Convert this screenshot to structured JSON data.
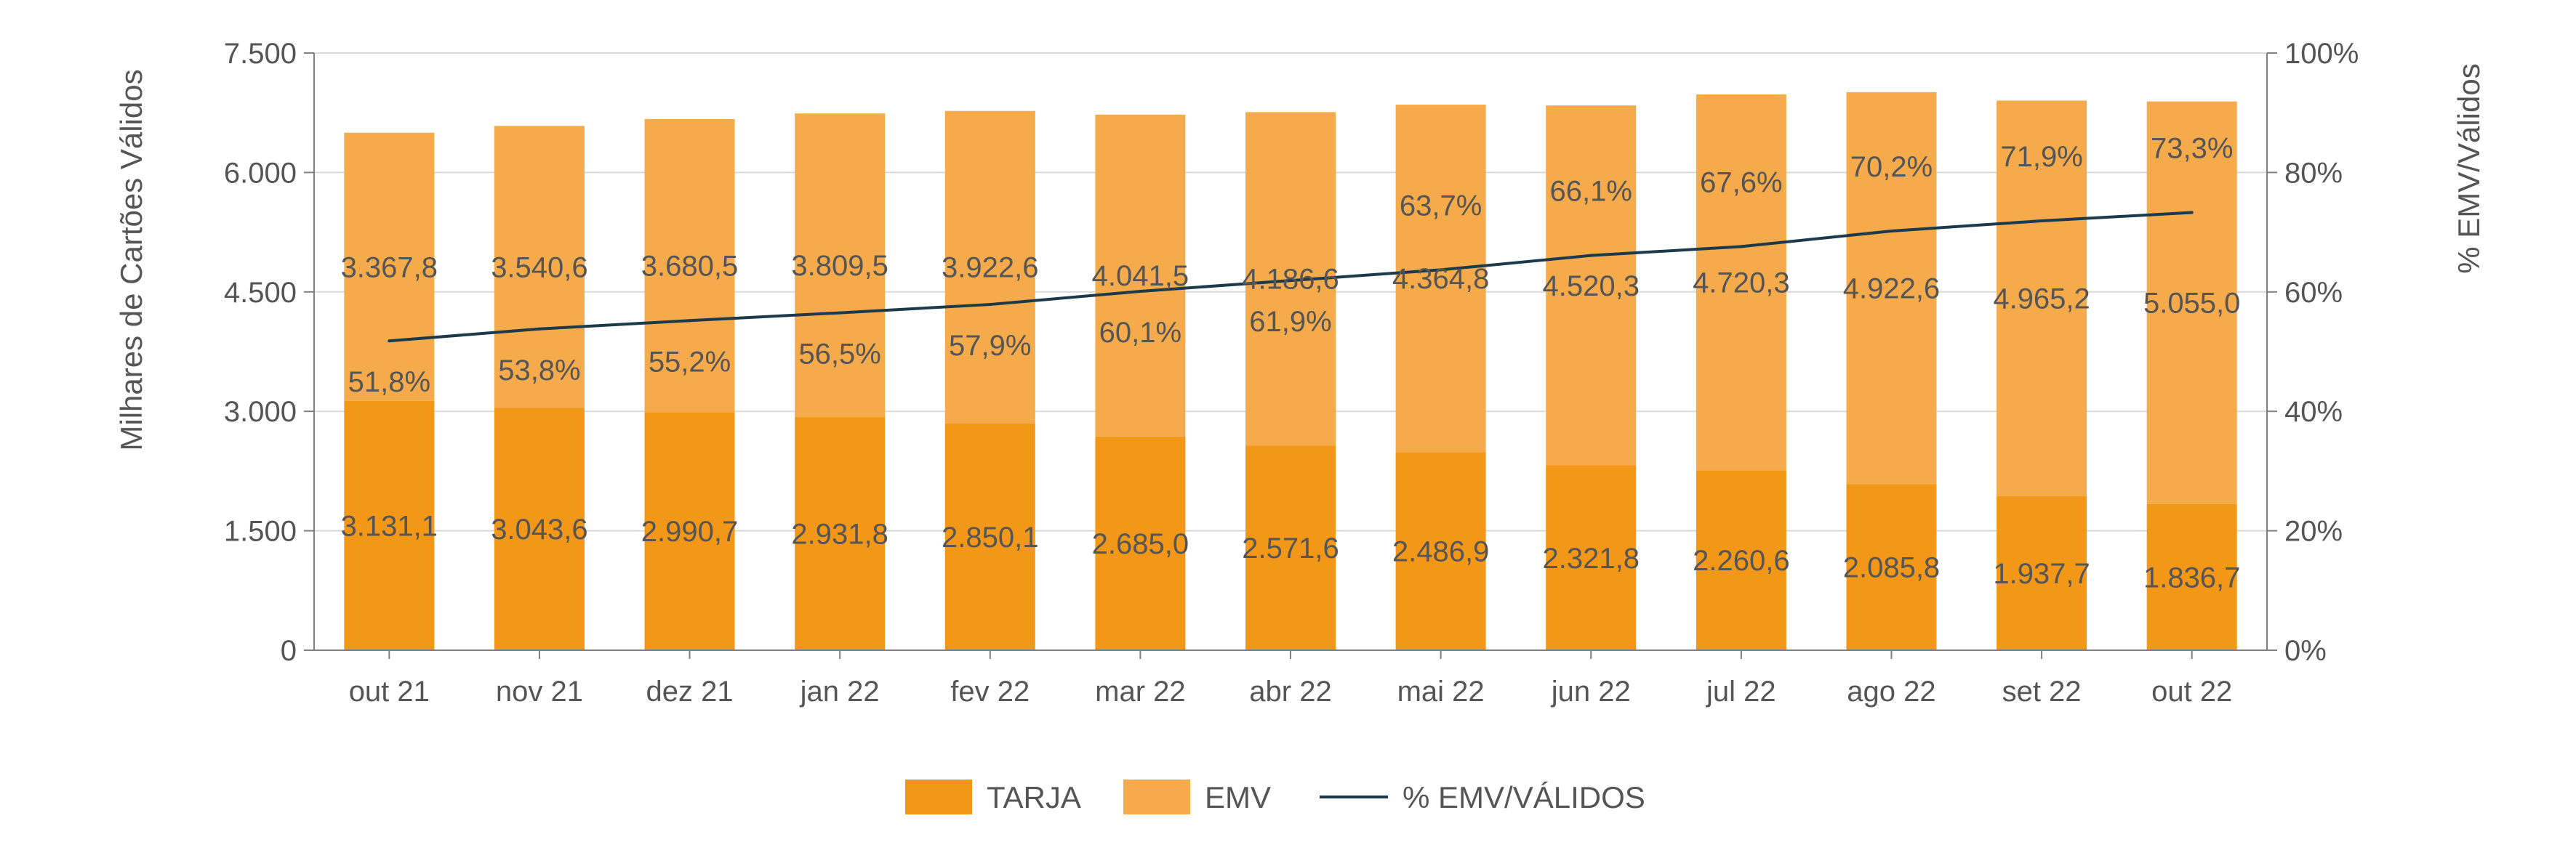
{
  "chart_data": {
    "type": "bar",
    "stacked": true,
    "categories": [
      "out 21",
      "nov 21",
      "dez 21",
      "jan 22",
      "fev 22",
      "mar 22",
      "abr 22",
      "mai 22",
      "jun 22",
      "jul 22",
      "ago 22",
      "set 22",
      "out 22"
    ],
    "series": [
      {
        "name": "TARJA",
        "color": "#F29718",
        "axis": "left",
        "values": [
          3131.1,
          3043.6,
          2990.7,
          2931.8,
          2850.1,
          2685.0,
          2571.6,
          2486.9,
          2321.8,
          2260.6,
          2085.8,
          1937.7,
          1836.7
        ],
        "labels": [
          "3.131,1",
          "3.043,6",
          "2.990,7",
          "2.931,8",
          "2.850,1",
          "2.685,0",
          "2.571,6",
          "2.486,9",
          "2.321,8",
          "2.260,6",
          "2.085,8",
          "1.937,7",
          "1.836,7"
        ]
      },
      {
        "name": "EMV",
        "color": "#F5AB4B",
        "axis": "left",
        "values": [
          3367.8,
          3540.6,
          3680.5,
          3809.5,
          3922.6,
          4041.5,
          4186.6,
          4364.8,
          4520.3,
          4720.3,
          4922.6,
          4965.2,
          5055.0
        ],
        "labels": [
          "3.367,8",
          "3.540,6",
          "3.680,5",
          "3.809,5",
          "3.922,6",
          "4.041,5",
          "4.186,6",
          "4.364,8",
          "4.520,3",
          "4.720,3",
          "4.922,6",
          "4.965,2",
          "5.055,0"
        ]
      },
      {
        "name": "% EMV/VÁLIDOS",
        "type": "line",
        "color": "#1B3A4B",
        "axis": "right",
        "values": [
          51.8,
          53.8,
          55.2,
          56.5,
          57.9,
          60.1,
          61.9,
          63.7,
          66.1,
          67.6,
          70.2,
          71.9,
          73.3
        ],
        "labels": [
          "51,8%",
          "53,8%",
          "55,2%",
          "56,5%",
          "57,9%",
          "60,1%",
          "61,9%",
          "63,7%",
          "66,1%",
          "67,6%",
          "70,2%",
          "71,9%",
          "73,3%"
        ]
      }
    ],
    "ylabel": "Milhares de Cartões Válidos",
    "y2label": "% EMV/Válidos",
    "ylim": [
      0,
      7500
    ],
    "y2lim": [
      0,
      100
    ],
    "yticks": [
      "0",
      "1.500",
      "3.000",
      "4.500",
      "6.000",
      "7.500"
    ],
    "y2ticks": [
      "0%",
      "20%",
      "40%",
      "60%",
      "80%",
      "100%"
    ],
    "grid": true,
    "legend_position": "bottom-center",
    "legend": [
      "TARJA",
      "EMV",
      "% EMV/VÁLIDOS"
    ]
  }
}
